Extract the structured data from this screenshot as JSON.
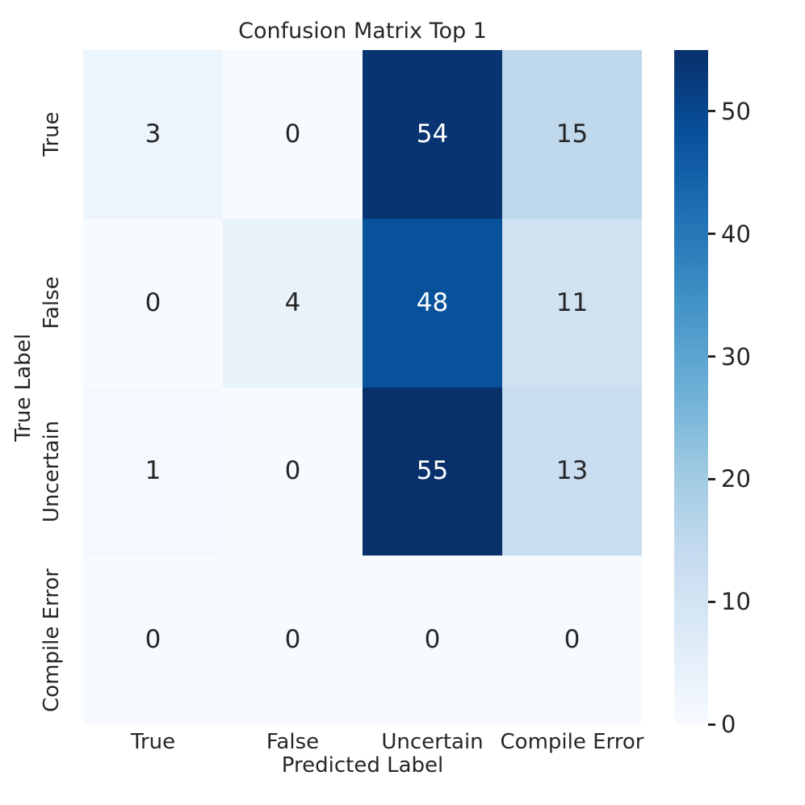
{
  "title": "Confusion Matrix Top 1",
  "colors": {
    "background": "#ffffff",
    "text": "#262626",
    "annotation_light": "#ffffff",
    "annotation_dark": "#262626"
  },
  "chart_data": {
    "type": "heatmap",
    "title": "Confusion Matrix Top 1",
    "xlabel": "Predicted Label",
    "ylabel": "True Label",
    "x_categories": [
      "True",
      "False",
      "Uncertain",
      "Compile Error"
    ],
    "y_categories": [
      "True",
      "False",
      "Uncertain",
      "Compile Error"
    ],
    "values": [
      [
        3,
        0,
        54,
        15
      ],
      [
        0,
        4,
        48,
        11
      ],
      [
        1,
        0,
        55,
        13
      ],
      [
        0,
        0,
        0,
        0
      ]
    ],
    "vmin": 0,
    "vmax": 55,
    "colormap": "Blues",
    "colormap_stops": [
      [
        0.0,
        "#f7fbff"
      ],
      [
        0.125,
        "#deebf7"
      ],
      [
        0.25,
        "#c6dbef"
      ],
      [
        0.375,
        "#9ecae1"
      ],
      [
        0.5,
        "#6baed6"
      ],
      [
        0.625,
        "#4292c6"
      ],
      [
        0.75,
        "#2171b5"
      ],
      [
        0.875,
        "#08519c"
      ],
      [
        1.0,
        "#08306b"
      ]
    ],
    "colorbar_ticks": [
      0,
      10,
      20,
      30,
      40,
      50
    ],
    "legend_position": "right-colorbar",
    "grid": false
  }
}
